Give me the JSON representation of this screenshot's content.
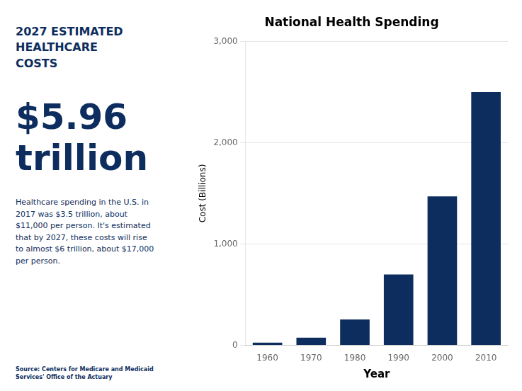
{
  "chart_data": {
    "type": "bar",
    "title": "National Health Spending",
    "xlabel": "Year",
    "ylabel": "Cost (Billions)",
    "categories": [
      "1960",
      "1970",
      "1980",
      "1990",
      "2000",
      "2010"
    ],
    "values": [
      27,
      75,
      255,
      700,
      1470,
      2500
    ],
    "color": "#0d2d5e",
    "ylim": [
      0,
      3000
    ],
    "yticks": [
      0,
      {
        "value": 1000,
        "label": "1,000"
      },
      {
        "value": 2000,
        "label": "2,000"
      },
      {
        "value": 3000,
        "label": "3,000"
      }
    ],
    "grid": true,
    "annotations": [
      "2027 ESTIMATED\nHEALTHCARE\nCOSTS",
      "$5.96\ntrillion",
      "Healthcare spending in the U.S. in\n2017 was $3.5 trillion, about\n$11,000 per person. It's estimated\nthat by 2027, these costs will rise\nto almost $6 trillion, about $17,000\nper person.",
      "Source: Centers for Medicare and Medicaid Services' Office of the Actuary"
    ]
  }
}
